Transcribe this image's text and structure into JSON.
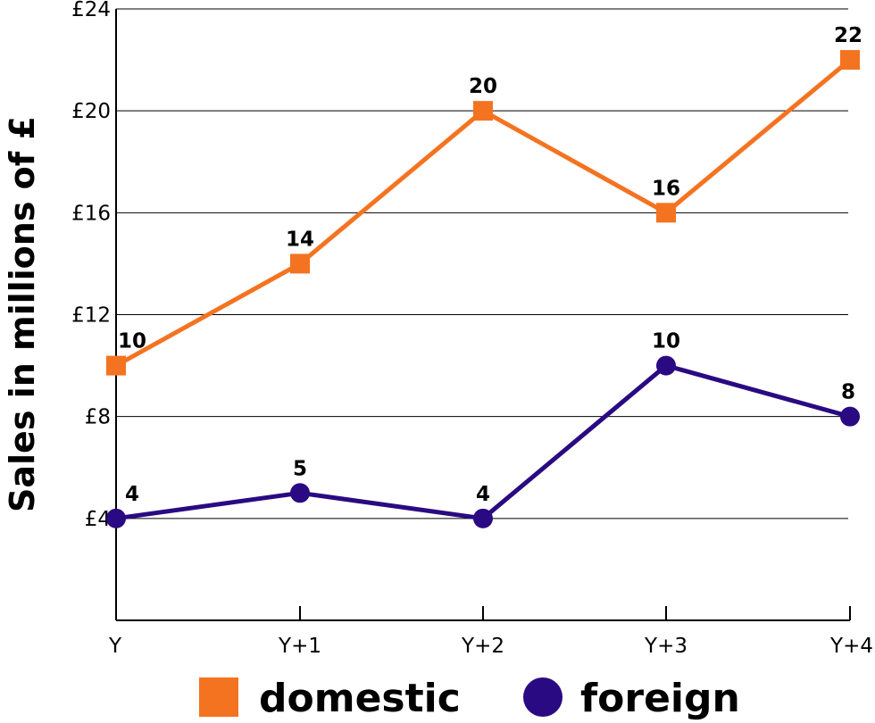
{
  "chart_data": {
    "type": "line",
    "categories": [
      "Y",
      "Y+1",
      "Y+2",
      "Y+3",
      "Y+4"
    ],
    "ylabel": "Sales in millions of £",
    "ylim": [
      0,
      24
    ],
    "yticks": [
      {
        "value": 4,
        "label": "£4"
      },
      {
        "value": 8,
        "label": "£8"
      },
      {
        "value": 12,
        "label": "£12"
      },
      {
        "value": 16,
        "label": "£16"
      },
      {
        "value": 20,
        "label": "£20"
      },
      {
        "value": 24,
        "label": "£24"
      }
    ],
    "grid": true,
    "legend_position": "bottom",
    "series": [
      {
        "name": "domestic",
        "values": [
          10,
          14,
          20,
          16,
          22
        ],
        "labels": [
          "10",
          "14",
          "20",
          "16",
          "22"
        ],
        "color": "#F47321",
        "marker": "square"
      },
      {
        "name": "foreign",
        "values": [
          4,
          5,
          4,
          10,
          8
        ],
        "labels": [
          "4",
          "5",
          "4",
          "10",
          "8"
        ],
        "color": "#2A0A82",
        "marker": "circle"
      }
    ]
  }
}
